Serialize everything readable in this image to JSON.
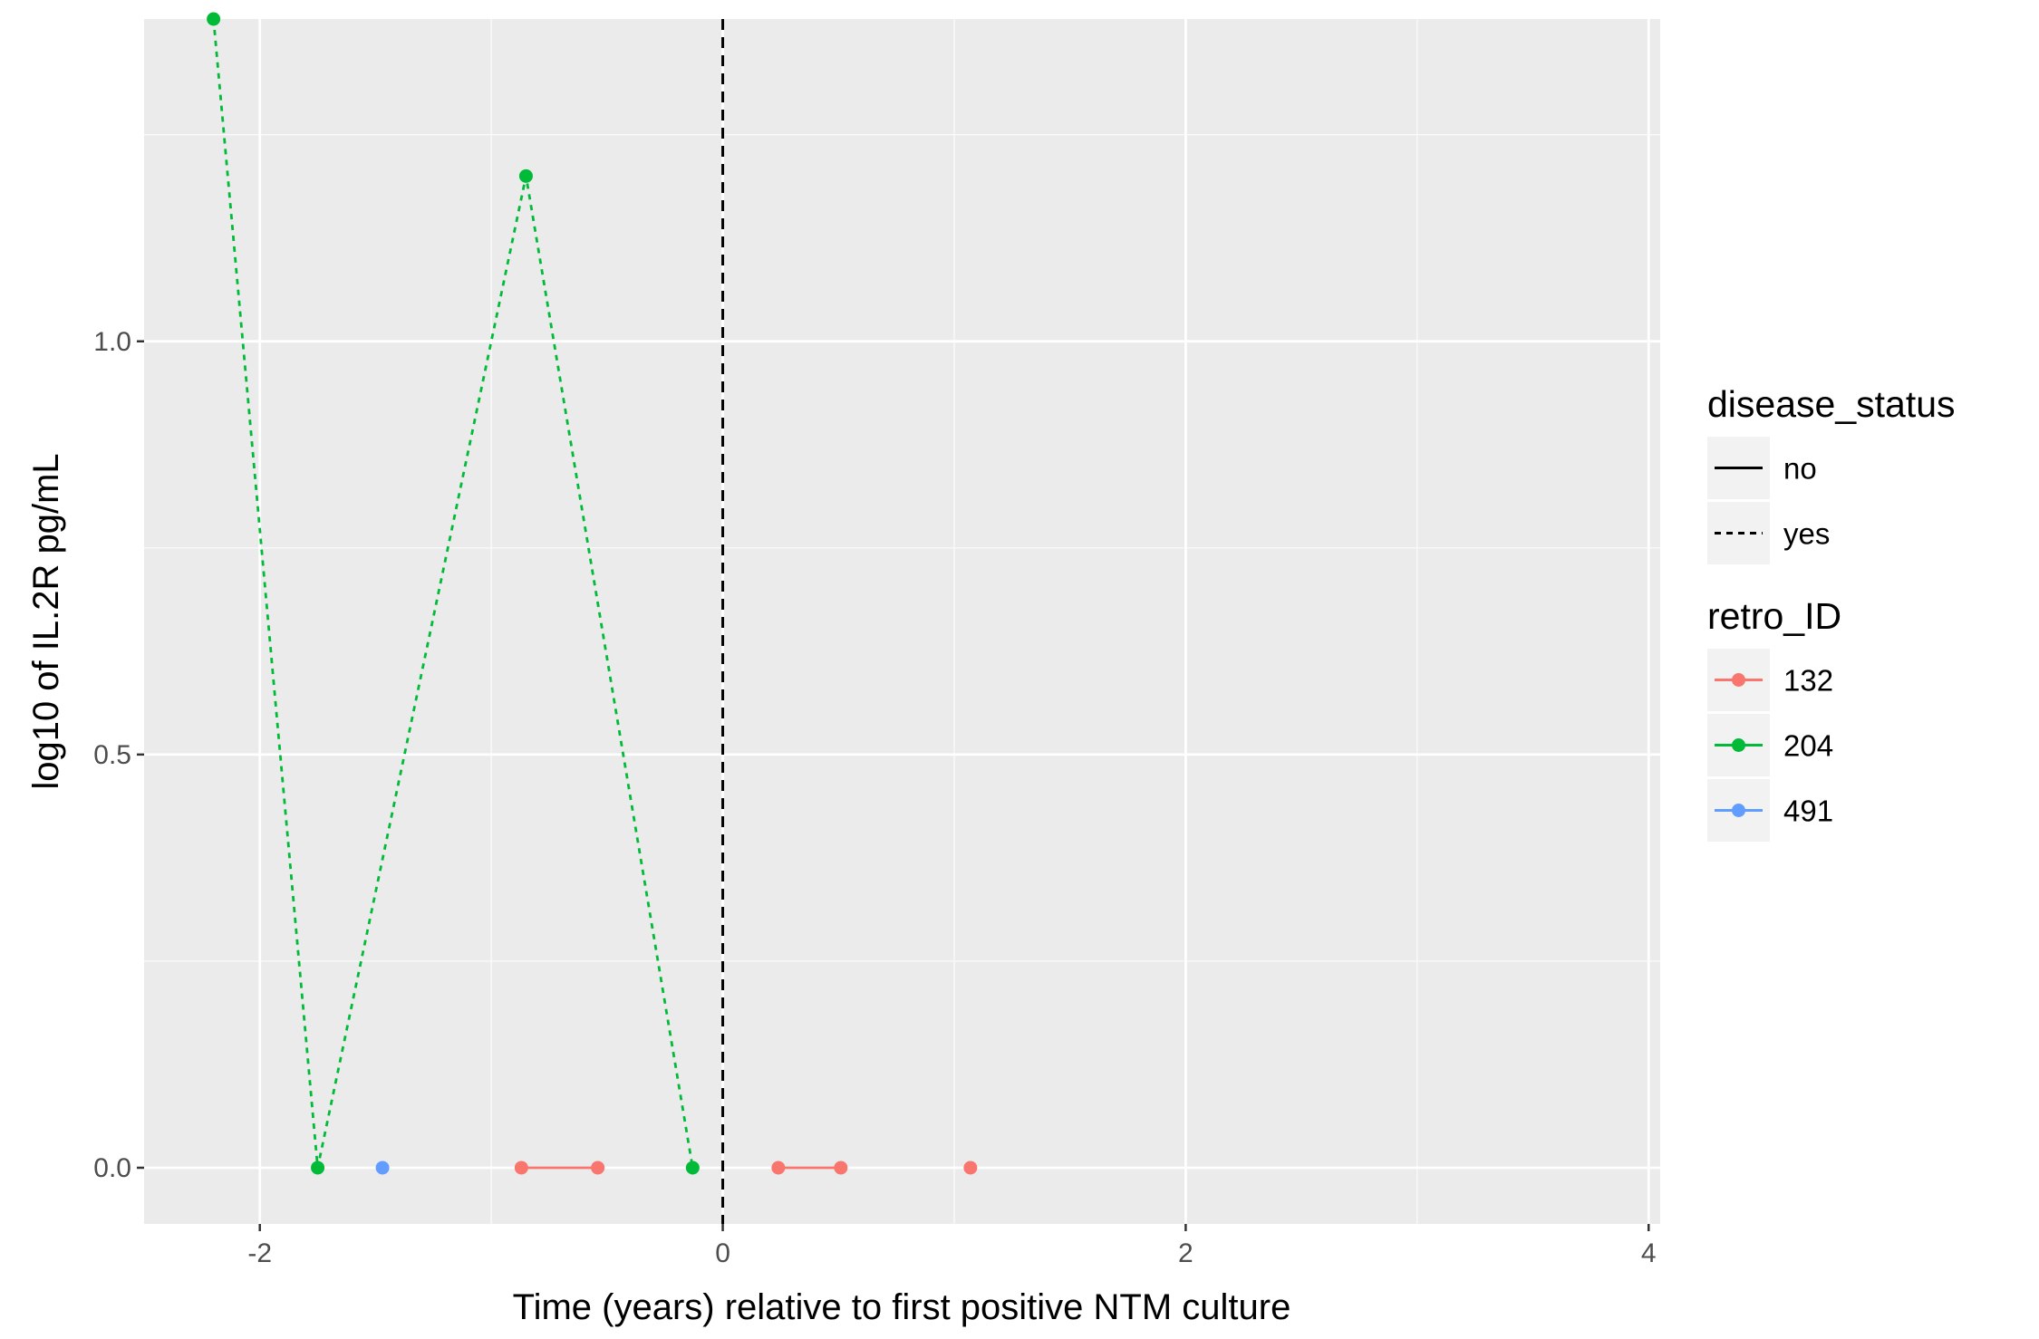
{
  "chart_data": {
    "type": "line",
    "xlabel": "Time (years) relative to first positive NTM culture",
    "ylabel": "log10 of IL.2R pg/mL",
    "xlim": [
      -2.5,
      4.05
    ],
    "ylim": [
      -0.068,
      1.39
    ],
    "x_ticks": [
      {
        "value": -2,
        "label": "-2"
      },
      {
        "value": 0,
        "label": "0"
      },
      {
        "value": 2,
        "label": "2"
      },
      {
        "value": 4,
        "label": "4"
      }
    ],
    "x_minor_ticks": [
      -1,
      1,
      3
    ],
    "y_ticks": [
      {
        "value": 0.0,
        "label": "0.0"
      },
      {
        "value": 0.5,
        "label": "0.5"
      },
      {
        "value": 1.0,
        "label": "1.0"
      }
    ],
    "y_minor_ticks": [
      0.25,
      0.75,
      1.25
    ],
    "grid": true,
    "panel_background": "#ebebeb",
    "vline": {
      "x": 0,
      "linetype": "dashed",
      "color": "#000000"
    },
    "series": [
      {
        "retro_ID": "132",
        "disease_status": "no",
        "color": "#F8766D",
        "segment": 1,
        "x": [
          -0.87,
          -0.54
        ],
        "y": [
          0.0,
          0.0
        ]
      },
      {
        "retro_ID": "132",
        "disease_status": "no",
        "color": "#F8766D",
        "segment": 2,
        "x": [
          0.24,
          0.51
        ],
        "y": [
          0.0,
          0.0
        ]
      },
      {
        "retro_ID": "132",
        "disease_status": "no",
        "color": "#F8766D",
        "segment": 3,
        "x": [
          1.07
        ],
        "y": [
          0.0
        ]
      },
      {
        "retro_ID": "204",
        "disease_status": "yes",
        "color": "#00BA38",
        "segment": 1,
        "x": [
          -2.2,
          -1.75,
          -0.85,
          -0.13
        ],
        "y": [
          1.39,
          0.0,
          1.2,
          0.0
        ]
      },
      {
        "retro_ID": "491",
        "disease_status": "no",
        "color": "#619CFF",
        "segment": 1,
        "x": [
          -1.47
        ],
        "y": [
          0.0
        ]
      }
    ],
    "legends": [
      {
        "title": "disease_status",
        "type": "linetype",
        "entries": [
          {
            "label": "no",
            "linetype": "solid"
          },
          {
            "label": "yes",
            "linetype": "dashed"
          }
        ]
      },
      {
        "title": "retro_ID",
        "type": "colour",
        "entries": [
          {
            "label": "132",
            "color": "#F8766D"
          },
          {
            "label": "204",
            "color": "#00BA38"
          },
          {
            "label": "491",
            "color": "#619CFF"
          }
        ]
      }
    ],
    "legend_position": "right"
  }
}
